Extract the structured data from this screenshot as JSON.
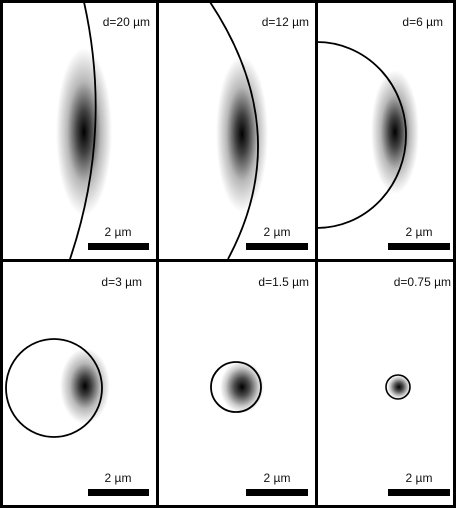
{
  "figure": {
    "scale_bar_label": "2 µm",
    "panels": [
      {
        "label": "d=20 µm"
      },
      {
        "label": "d=12 µm"
      },
      {
        "label": "d=6 µm"
      },
      {
        "label": "d=3 µm"
      },
      {
        "label": "d=1.5 µm"
      },
      {
        "label": "d=0.75 µm"
      }
    ]
  }
}
